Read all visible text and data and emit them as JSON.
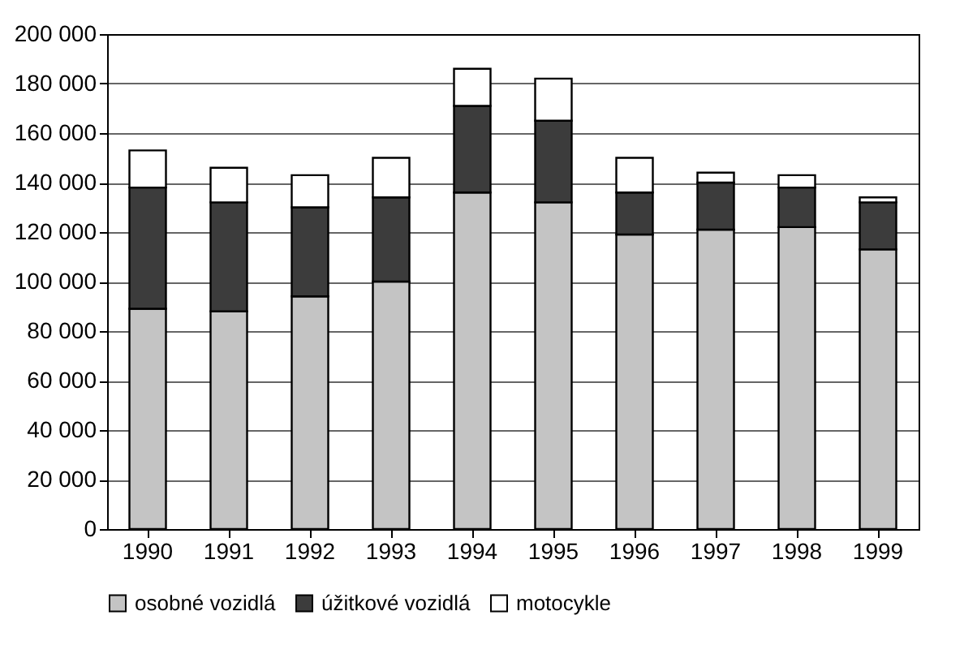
{
  "chart_data": {
    "type": "bar",
    "stacked": true,
    "categories": [
      "1990",
      "1991",
      "1992",
      "1993",
      "1994",
      "1995",
      "1996",
      "1997",
      "1998",
      "1999"
    ],
    "series": [
      {
        "name": "osobné vozidlá",
        "color": "#c4c4c4",
        "values": [
          89000,
          88000,
          94000,
          100000,
          136000,
          132000,
          119000,
          121000,
          122000,
          113000
        ]
      },
      {
        "name": "úžitkové vozidlá",
        "color": "#3c3c3c",
        "values": [
          49000,
          44000,
          36000,
          34000,
          35000,
          33000,
          17000,
          19000,
          16000,
          19000
        ]
      },
      {
        "name": "motocykle",
        "color": "#ffffff",
        "values": [
          15000,
          14000,
          13000,
          16000,
          15000,
          17000,
          14000,
          4000,
          5000,
          2000
        ]
      }
    ],
    "ylim": [
      0,
      200000
    ],
    "yticks": [
      {
        "value": 0,
        "label": "0"
      },
      {
        "value": 20000,
        "label": "20 000"
      },
      {
        "value": 40000,
        "label": "40 000"
      },
      {
        "value": 60000,
        "label": "60 000"
      },
      {
        "value": 80000,
        "label": "80 000"
      },
      {
        "value": 100000,
        "label": "100 000"
      },
      {
        "value": 120000,
        "label": "120 000"
      },
      {
        "value": 140000,
        "label": "140 000"
      },
      {
        "value": 160000,
        "label": "160 000"
      },
      {
        "value": 180000,
        "label": "180 000"
      },
      {
        "value": 200000,
        "label": "200 000"
      }
    ],
    "grid": "y",
    "legend": "bottom"
  }
}
